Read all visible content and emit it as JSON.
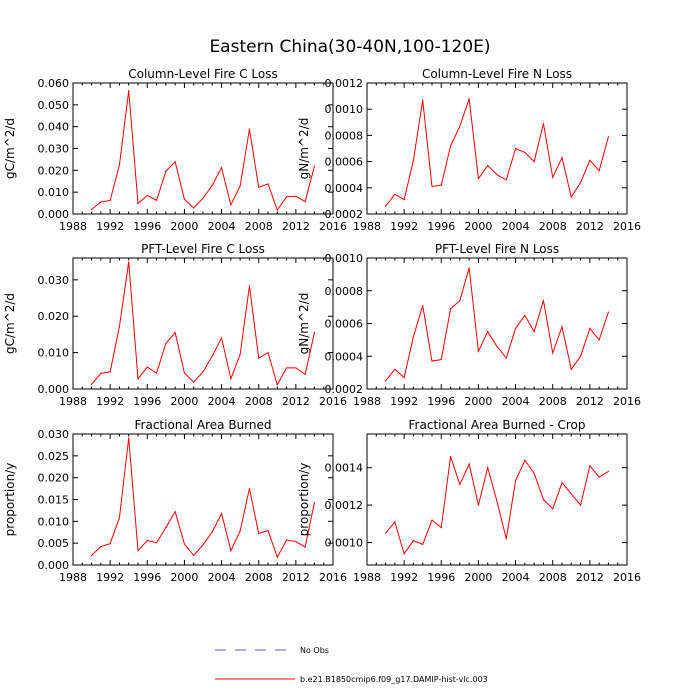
{
  "figure_title": "Eastern China(30-40N,100-120E)",
  "colors": {
    "model": "#ff0000",
    "obs": "#6a5acd",
    "axis": "#000000"
  },
  "legend": {
    "obs_label": "No Obs",
    "model_label": "b.e21.B1850cmip6.f09_g17.DAMIP-hist-vlc.003"
  },
  "chart_data": [
    {
      "type": "line",
      "title": "Column-Level Fire C Loss",
      "ylabel": "gC/m^2/d",
      "xlabel": "",
      "xlim": [
        1988,
        2016
      ],
      "xticks": [
        1988,
        1992,
        1996,
        2000,
        2004,
        2008,
        2012,
        2016
      ],
      "ylim": [
        0.0,
        0.06
      ],
      "yticks": [
        0.0,
        0.01,
        0.02,
        0.03,
        0.04,
        0.05,
        0.06
      ],
      "ytick_labels": [
        "0.000",
        "0.010",
        "0.020",
        "0.030",
        "0.040",
        "0.050",
        "0.060"
      ],
      "series": [
        {
          "name": "b.e21.B1850cmip6.f09_g17.DAMIP-hist-vlc.003",
          "x": [
            1990,
            1991,
            1992,
            1993,
            1994,
            1995,
            1996,
            1997,
            1998,
            1999,
            2000,
            2001,
            2002,
            2003,
            2004,
            2005,
            2006,
            2007,
            2008,
            2009,
            2010,
            2011,
            2012,
            2013,
            2014
          ],
          "values": [
            0.0021,
            0.0055,
            0.0062,
            0.0225,
            0.0565,
            0.0048,
            0.0085,
            0.0063,
            0.0195,
            0.024,
            0.0067,
            0.0028,
            0.0072,
            0.0132,
            0.0212,
            0.0042,
            0.0128,
            0.0389,
            0.0122,
            0.0138,
            0.0018,
            0.0079,
            0.0081,
            0.0057,
            0.0219
          ]
        }
      ]
    },
    {
      "type": "line",
      "title": "Column-Level Fire N Loss",
      "ylabel": "gN/m^2/d",
      "xlabel": "",
      "xlim": [
        1988,
        2016
      ],
      "xticks": [
        1988,
        1992,
        1996,
        2000,
        2004,
        2008,
        2012,
        2016
      ],
      "ylim": [
        0.0002,
        0.0012
      ],
      "yticks": [
        0.0002,
        0.0004,
        0.0006,
        0.0008,
        0.001,
        0.0012
      ],
      "ytick_labels": [
        "0.0002",
        "0.0004",
        "0.0006",
        "0.0008",
        "0.0010",
        "0.0012"
      ],
      "series": [
        {
          "name": "b.e21.B1850cmip6.f09_g17.DAMIP-hist-vlc.003",
          "x": [
            1990,
            1991,
            1992,
            1993,
            1994,
            1995,
            1996,
            1997,
            1998,
            1999,
            2000,
            2001,
            2002,
            2003,
            2004,
            2005,
            2006,
            2007,
            2008,
            2009,
            2010,
            2011,
            2012,
            2013,
            2014
          ],
          "values": [
            0.00026,
            0.00035,
            0.00031,
            0.00061,
            0.00107,
            0.00041,
            0.00042,
            0.00072,
            0.00087,
            0.00108,
            0.00047,
            0.00057,
            0.0005,
            0.00046,
            0.0007,
            0.00067,
            0.0006,
            0.00089,
            0.00048,
            0.00063,
            0.00033,
            0.00044,
            0.00061,
            0.00053,
            0.00079
          ]
        }
      ]
    },
    {
      "type": "line",
      "title": "PFT-Level Fire C Loss",
      "ylabel": "gC/m^2/d",
      "xlabel": "",
      "xlim": [
        1988,
        2016
      ],
      "xticks": [
        1988,
        1992,
        1996,
        2000,
        2004,
        2008,
        2012,
        2016
      ],
      "ylim": [
        0.0,
        0.036
      ],
      "yticks": [
        0.0,
        0.01,
        0.02,
        0.03
      ],
      "ytick_labels": [
        "0.000",
        "0.010",
        "0.020",
        "0.030"
      ],
      "series": [
        {
          "name": "b.e21.B1850cmip6.f09_g17.DAMIP-hist-vlc.003",
          "x": [
            1990,
            1991,
            1992,
            1993,
            1994,
            1995,
            1996,
            1997,
            1998,
            1999,
            2000,
            2001,
            2002,
            2003,
            2004,
            2005,
            2006,
            2007,
            2008,
            2009,
            2010,
            2011,
            2012,
            2013,
            2014
          ],
          "values": [
            0.0013,
            0.0043,
            0.0047,
            0.0172,
            0.0349,
            0.0028,
            0.006,
            0.0044,
            0.0125,
            0.0155,
            0.0044,
            0.0019,
            0.0047,
            0.0091,
            0.014,
            0.0028,
            0.0095,
            0.0283,
            0.0085,
            0.01,
            0.0012,
            0.0058,
            0.0058,
            0.004,
            0.0155
          ]
        }
      ]
    },
    {
      "type": "line",
      "title": "PFT-Level Fire N Loss",
      "ylabel": "gN/m^2/d",
      "xlabel": "",
      "xlim": [
        1988,
        2016
      ],
      "xticks": [
        1988,
        1992,
        1996,
        2000,
        2004,
        2008,
        2012,
        2016
      ],
      "ylim": [
        0.0002,
        0.001
      ],
      "yticks": [
        0.0002,
        0.0004,
        0.0006,
        0.0008,
        0.001
      ],
      "ytick_labels": [
        "0.0002",
        "0.0004",
        "0.0006",
        "0.0008",
        "0.0010"
      ],
      "series": [
        {
          "name": "b.e21.B1850cmip6.f09_g17.DAMIP-hist-vlc.003",
          "x": [
            1990,
            1991,
            1992,
            1993,
            1994,
            1995,
            1996,
            1997,
            1998,
            1999,
            2000,
            2001,
            2002,
            2003,
            2004,
            2005,
            2006,
            2007,
            2008,
            2009,
            2010,
            2011,
            2012,
            2013,
            2014
          ],
          "values": [
            0.00025,
            0.00032,
            0.00027,
            0.00052,
            0.00071,
            0.00037,
            0.00038,
            0.00069,
            0.00074,
            0.00094,
            0.00043,
            0.00055,
            0.00046,
            0.00039,
            0.00057,
            0.00065,
            0.00055,
            0.00074,
            0.00042,
            0.00058,
            0.00032,
            0.0004,
            0.00057,
            0.0005,
            0.00067
          ]
        }
      ]
    },
    {
      "type": "line",
      "title": "Fractional Area Burned",
      "ylabel": "proportion/y",
      "xlabel": "",
      "xlim": [
        1988,
        2016
      ],
      "xticks": [
        1988,
        1992,
        1996,
        2000,
        2004,
        2008,
        2012,
        2016
      ],
      "ylim": [
        0.0,
        0.03
      ],
      "yticks": [
        0.0,
        0.005,
        0.01,
        0.015,
        0.02,
        0.025,
        0.03
      ],
      "ytick_labels": [
        "0.000",
        "0.005",
        "0.010",
        "0.015",
        "0.020",
        "0.025",
        "0.030"
      ],
      "series": [
        {
          "name": "b.e21.B1850cmip6.f09_g17.DAMIP-hist-vlc.003",
          "x": [
            1990,
            1991,
            1992,
            1993,
            1994,
            1995,
            1996,
            1997,
            1998,
            1999,
            2000,
            2001,
            2002,
            2003,
            2004,
            2005,
            2006,
            2007,
            2008,
            2009,
            2010,
            2011,
            2012,
            2013,
            2014
          ],
          "values": [
            0.0022,
            0.0042,
            0.0049,
            0.0108,
            0.0291,
            0.0033,
            0.0056,
            0.0051,
            0.0086,
            0.0122,
            0.0048,
            0.0022,
            0.0046,
            0.0076,
            0.0118,
            0.0033,
            0.0078,
            0.0175,
            0.0072,
            0.0079,
            0.0018,
            0.0057,
            0.0054,
            0.0041,
            0.0143
          ]
        }
      ]
    },
    {
      "type": "line",
      "title": "Fractional Area Burned - Crop",
      "ylabel": "proportion/y",
      "xlabel": "",
      "xlim": [
        1988,
        2016
      ],
      "xticks": [
        1988,
        1992,
        1996,
        2000,
        2004,
        2008,
        2012,
        2016
      ],
      "ylim": [
        0.00088,
        0.00158
      ],
      "yticks": [
        0.001,
        0.0012,
        0.0014
      ],
      "ytick_labels": [
        "0.0010",
        "0.0012",
        "0.0014"
      ],
      "series": [
        {
          "name": "b.e21.B1850cmip6.f09_g17.DAMIP-hist-vlc.003",
          "x": [
            1990,
            1991,
            1992,
            1993,
            1994,
            1995,
            1996,
            1997,
            1998,
            1999,
            2000,
            2001,
            2002,
            2003,
            2004,
            2005,
            2006,
            2007,
            2008,
            2009,
            2010,
            2011,
            2012,
            2013,
            2014
          ],
          "values": [
            0.00105,
            0.00111,
            0.00094,
            0.00101,
            0.00099,
            0.00112,
            0.00108,
            0.00146,
            0.00131,
            0.00142,
            0.0012,
            0.0014,
            0.00122,
            0.00102,
            0.00133,
            0.00144,
            0.00137,
            0.00123,
            0.00118,
            0.00132,
            0.00126,
            0.0012,
            0.00141,
            0.00135,
            0.00138
          ]
        }
      ]
    }
  ]
}
